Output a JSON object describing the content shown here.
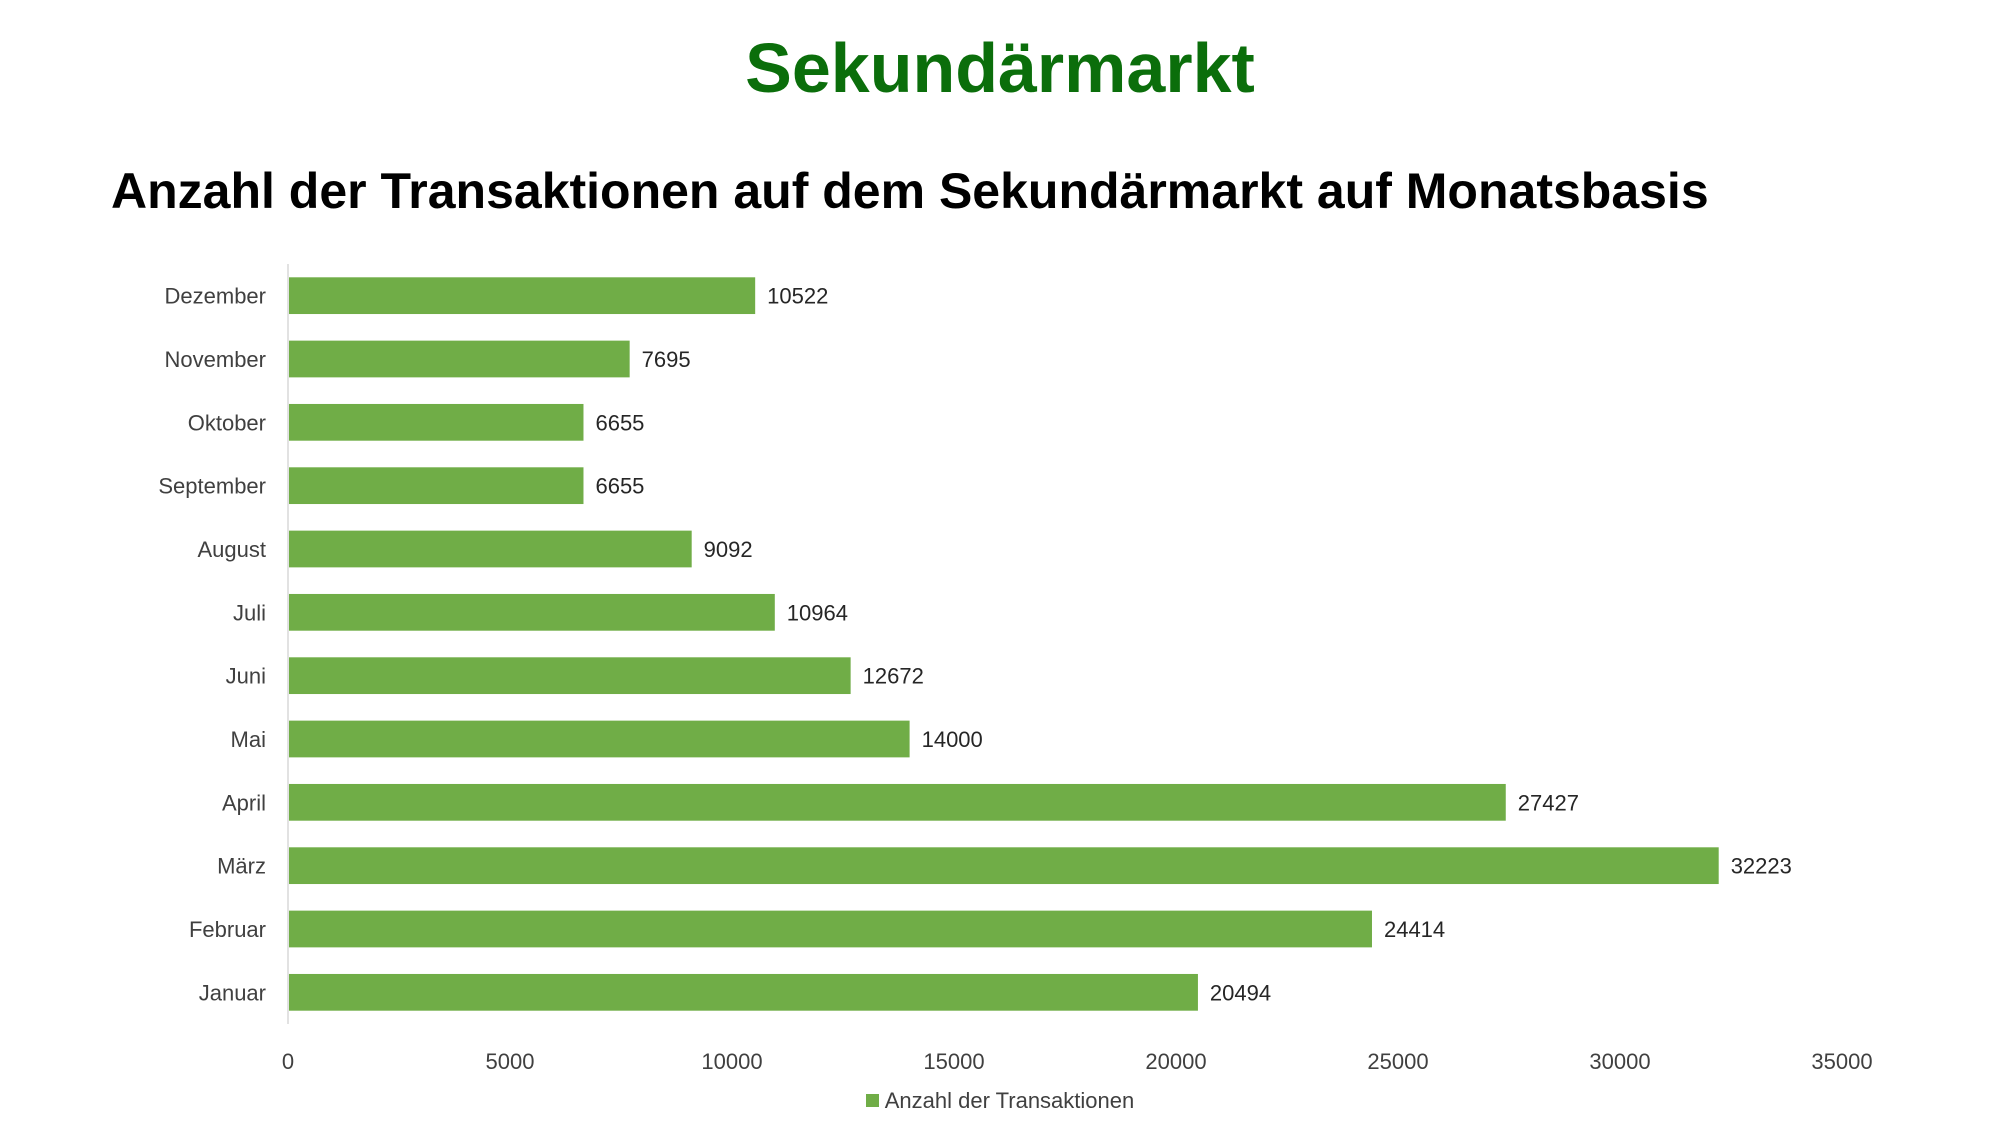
{
  "heading": "Sekundärmarkt",
  "colors": {
    "heading": "#0b6e0b",
    "bar": "#70ad47",
    "axis": "#d9d9d9"
  },
  "chart_data": {
    "type": "bar",
    "orientation": "horizontal",
    "title": "Anzahl der Transaktionen auf dem Sekundärmarkt auf Monatsbasis",
    "categories": [
      "Januar",
      "Februar",
      "März",
      "April",
      "Mai",
      "Juni",
      "Juli",
      "August",
      "September",
      "Oktober",
      "November",
      "Dezember"
    ],
    "series": [
      {
        "name": "Anzahl der Transaktionen",
        "values": [
          20494,
          24414,
          32223,
          27427,
          14000,
          12672,
          10964,
          9092,
          6655,
          6655,
          7695,
          10522
        ]
      }
    ],
    "xlim": [
      0,
      35000
    ],
    "x_ticks": [
      0,
      5000,
      10000,
      15000,
      20000,
      25000,
      30000,
      35000
    ],
    "data_labels": true,
    "grid": false,
    "legend_position": "bottom"
  }
}
